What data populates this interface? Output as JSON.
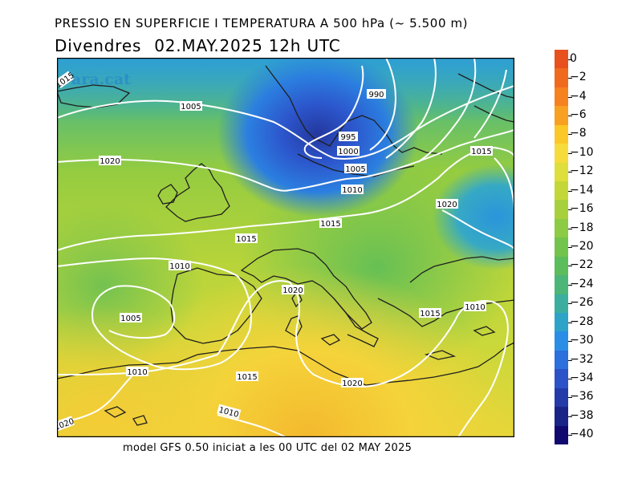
{
  "title": "PRESSIO EN SUPERFICIE I TEMPERATURA A 500 hPa (~ 5.500 m)",
  "day": "Divendres",
  "datetime": "02.MAY.2025 12h UTC",
  "footer": "model GFS 0.50 iniciat a les 00 UTC del 02 MAY 2025",
  "watermark": "ara.cat",
  "isobar_labels": [
    "1015",
    "990",
    "1005",
    "995",
    "1000",
    "1005",
    "1010",
    "1015",
    "1020",
    "1020",
    "1015",
    "1015",
    "1010",
    "1020",
    "1005",
    "1010",
    "1015",
    "1010",
    "1015",
    "1015",
    "1020",
    "1010",
    "1020"
  ],
  "colorbar": {
    "labels": [
      "0",
      "-2",
      "-4",
      "-6",
      "-8",
      "-10",
      "-12",
      "-14",
      "-16",
      "-18",
      "-20",
      "-22",
      "-24",
      "-26",
      "-28",
      "-30",
      "-32",
      "-34",
      "-36",
      "-38",
      "-40"
    ],
    "colors": [
      "#e8501e",
      "#f06a1e",
      "#f5821e",
      "#f8a022",
      "#fac828",
      "#f5dc3c",
      "#dede3c",
      "#c3d838",
      "#a8d03c",
      "#8ccb44",
      "#72c44c",
      "#5cbd5c",
      "#4cb678",
      "#3caea0",
      "#2ea3c8",
      "#2a8ee6",
      "#2d6fdc",
      "#2c52c8",
      "#243aa8",
      "#1a2488",
      "#100a6e"
    ]
  },
  "colors": {
    "isobar": "#ffffff",
    "coast": "#1f1f1f",
    "frame": "#000000"
  }
}
